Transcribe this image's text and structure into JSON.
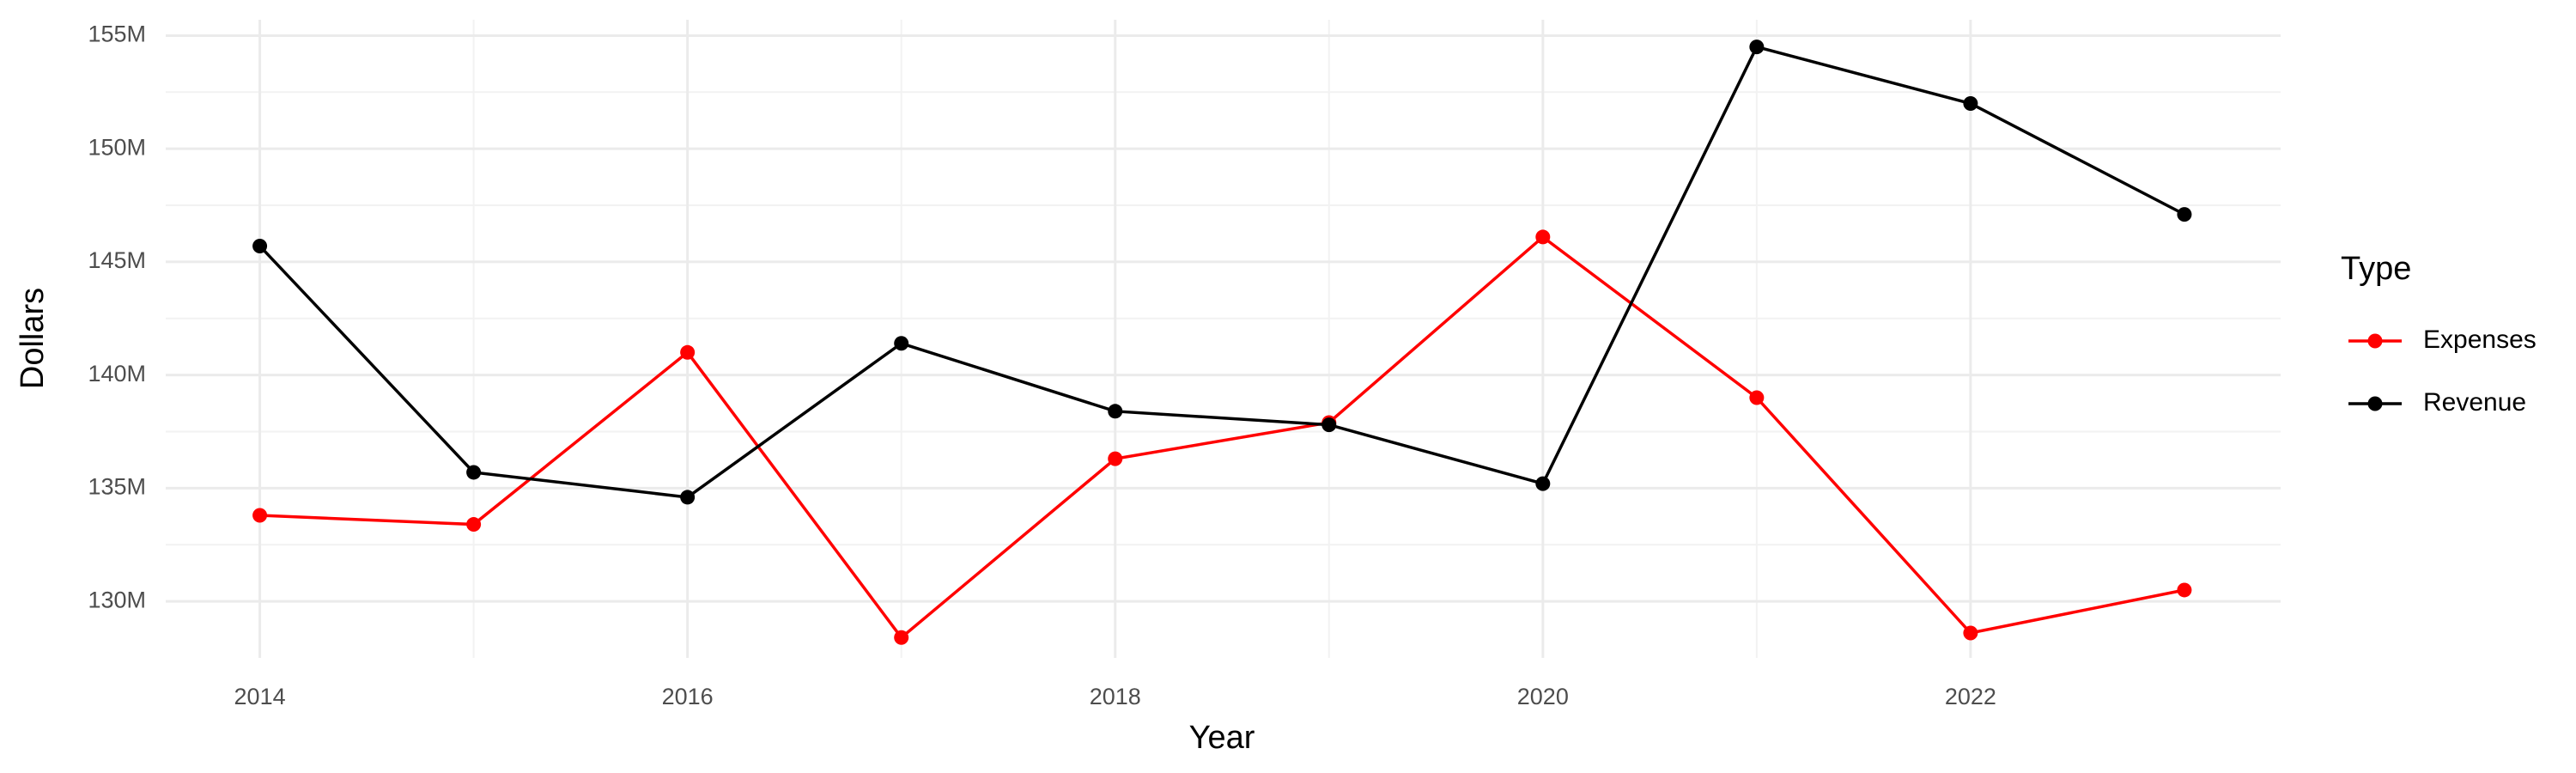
{
  "chart_data": {
    "type": "line",
    "x_label": "Year",
    "y_label": "Dollars",
    "legend_title": "Type",
    "x": [
      2014,
      2015,
      2016,
      2017,
      2018,
      2019,
      2020,
      2021,
      2022,
      2023
    ],
    "series": [
      {
        "name": "Expenses",
        "color": "#ff0000",
        "values": [
          133800000,
          133400000,
          141000000,
          128400000,
          136300000,
          137900000,
          146100000,
          139000000,
          128600000,
          130500000
        ]
      },
      {
        "name": "Revenue",
        "color": "#000000",
        "values": [
          145700000,
          135700000,
          134600000,
          141400000,
          138400000,
          137800000,
          135200000,
          154500000,
          152000000,
          147100000
        ]
      }
    ],
    "xlim": [
      2013.56,
      2023.45
    ],
    "xticks": [
      2014,
      2016,
      2018,
      2020,
      2022
    ],
    "ylim": [
      127500000,
      155700000
    ],
    "yticks": [
      {
        "value": 130000000,
        "label": "130M"
      },
      {
        "value": 135000000,
        "label": "135M"
      },
      {
        "value": 140000000,
        "label": "140M"
      },
      {
        "value": 145000000,
        "label": "145M"
      },
      {
        "value": 150000000,
        "label": "150M"
      },
      {
        "value": 155000000,
        "label": "155M"
      }
    ],
    "grid": true,
    "legend_position": "right"
  }
}
